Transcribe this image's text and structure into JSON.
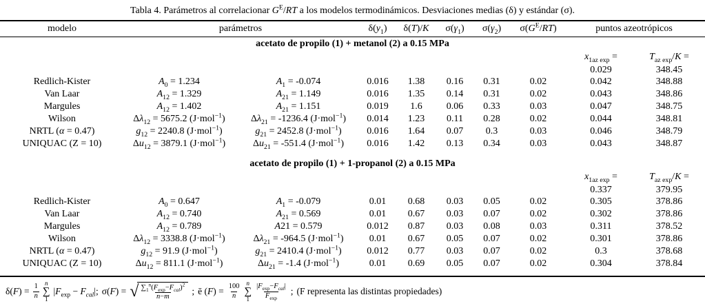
{
  "title": {
    "text": "Tabla 4. Parámetros al correlacionar *G*^{E}/*RT* a los modelos termodinámicos. Desviaciones medias (δ) y estándar (σ)."
  },
  "columns": {
    "model": "modelo",
    "params": "parámetros",
    "dy1": "δ(*y*_{1})",
    "dT": "δ(*T*)/*K*",
    "sg1": "σ(*γ*_{1})",
    "sg2": "σ(*γ*_{2})",
    "sge": "σ(*G*^{E}/*RT*)",
    "azeo": "puntos azeotrópicos"
  },
  "az_labels": {
    "x": "*x*_{1az exp} =",
    "T": "*T*_{az exp}/*K* ="
  },
  "sections": [
    {
      "header": "acetato de propilo (1) + metanol (2) a 0.15 MPa",
      "az_x": "0.029",
      "az_T": "348.45",
      "rows": [
        {
          "model": "Redlich-Kister",
          "p1": "*A*_{0} = 1.234",
          "p2": "*A*_{1} = -0.074",
          "dy1": "0.016",
          "dT": "1.38",
          "sg1": "0.16",
          "sg2": "0.31",
          "sge": "0.02",
          "x": "0.042",
          "T": "348.88"
        },
        {
          "model": "Van Laar",
          "p1": "*A*_{12} = 1.329",
          "p2": "*A*_{21} = 1.149",
          "dy1": "0.016",
          "dT": "1.35",
          "sg1": "0.14",
          "sg2": "0.31",
          "sge": "0.02",
          "x": "0.043",
          "T": "348.86"
        },
        {
          "model": "Margules",
          "p1": "*A*_{12} = 1.402",
          "p2": "*A*_{21} = 1.151",
          "dy1": "0.019",
          "dT": "1.6",
          "sg1": "0.06",
          "sg2": "0.33",
          "sge": "0.03",
          "x": "0.047",
          "T": "348.75"
        },
        {
          "model": "Wilson",
          "p1": "Δ*λ*_{12} = 5675.2 (J·mol^{−1})",
          "p2": "Δ*λ*_{21} = -1236.4 (J·mol^{−1})",
          "dy1": "0.014",
          "dT": "1.23",
          "sg1": "0.11",
          "sg2": "0.28",
          "sge": "0.02",
          "x": "0.044",
          "T": "348.81"
        },
        {
          "model": "NRTL (*α* = 0.47)",
          "p1": "*g*_{12} = 2240.8 (J·mol^{−1})",
          "p2": "*g*_{21} = 2452.8 (J·mol^{−1})",
          "dy1": "0.016",
          "dT": "1.64",
          "sg1": "0.07",
          "sg2": "0.3",
          "sge": "0.03",
          "x": "0.046",
          "T": "348.79"
        },
        {
          "model": "UNIQUAC (Z = 10)",
          "p1": "Δ*u*_{12} = 3879.1 (J·mol^{−1})",
          "p2": "Δ*u*_{21} = -551.4 (J·mol^{−1})",
          "dy1": "0.016",
          "dT": "1.42",
          "sg1": "0.13",
          "sg2": "0.34",
          "sge": "0.03",
          "x": "0.043",
          "T": "348.87"
        }
      ]
    },
    {
      "header": "acetato de propilo (1) + 1-propanol (2) a 0.15 MPa",
      "az_x": "0.337",
      "az_T": "379.95",
      "rows": [
        {
          "model": "Redlich-Kister",
          "p1": "*A*_{0} = 0.647",
          "p2": "*A*_{1} = -0.079",
          "dy1": "0.01",
          "dT": "0.68",
          "sg1": "0.03",
          "sg2": "0.05",
          "sge": "0.02",
          "x": "0.305",
          "T": "378.86"
        },
        {
          "model": "Van Laar",
          "p1": "*A*_{12} = 0.740",
          "p2": "*A*_{21} = 0.569",
          "dy1": "0.01",
          "dT": "0.67",
          "sg1": "0.03",
          "sg2": "0.07",
          "sge": "0.02",
          "x": "0.302",
          "T": "378.86"
        },
        {
          "model": "Margules",
          "p1": "*A*_{12} = 0.789",
          "p2": "*A*21 = 0.579",
          "dy1": "0.012",
          "dT": "0.87",
          "sg1": "0.03",
          "sg2": "0.08",
          "sge": "0.03",
          "x": "0.311",
          "T": "378.52"
        },
        {
          "model": "Wilson",
          "p1": "Δ*λ*_{12} = 3338.8 (J·mol^{−1})",
          "p2": "Δ*λ*_{21} = -964.5 (J·mol^{−1})",
          "dy1": "0.01",
          "dT": "0.67",
          "sg1": "0.05",
          "sg2": "0.07",
          "sge": "0.02",
          "x": "0.301",
          "T": "378.86"
        },
        {
          "model": "NRTL (*α* = 0.47)",
          "p1": "*g*_{12} = 91.9 (J·mol^{−1})",
          "p2": "*g*_{21} = 2410.4 (J·mol^{−1})",
          "dy1": "0.012",
          "dT": "0.77",
          "sg1": "0.03",
          "sg2": "0.07",
          "sge": "0.02",
          "x": "0.3",
          "T": "378.68"
        },
        {
          "model": "UNIQUAC (Z = 10)",
          "p1": "Δ*u*_{12} = 811.1 (J·mol^{−1})",
          "p2": "Δ*u*_{21} = -1.4 (J·mol^{−1})",
          "dy1": "0.01",
          "dT": "0.69",
          "sg1": "0.05",
          "sg2": "0.07",
          "sge": "0.02",
          "x": "0.304",
          "T": "378.84"
        }
      ]
    }
  ],
  "footer": {
    "sum_sym": "∑",
    "radical_sym": "√",
    "delta": {
      "lhs": "δ(*F*) =",
      "frac_top": "1",
      "frac_bot": "*n*",
      "sum_top": "*n*",
      "sum_bot": "1",
      "body": "|*F*_{exp} − *F*_{*cal*}|;"
    },
    "sigma": {
      "lhs": "σ(*F*) =",
      "rad_num": "∑_{1}^{n}(*F*_{exp}−*F*_{*cal*})^{2}",
      "rad_den": "*n*−*m*",
      "end": ";"
    },
    "ebar": {
      "lhs": "ē (*F*) =",
      "frac_top": "100",
      "frac_bot": "*n*",
      "sum_top": "*n*",
      "sum_bot": "1",
      "num": "|*F*_{exp}−*F*_{*cal*}|",
      "den": "*F*_{exp}",
      "end": ";"
    },
    "note": "(F representa las distintas propiedades)"
  }
}
